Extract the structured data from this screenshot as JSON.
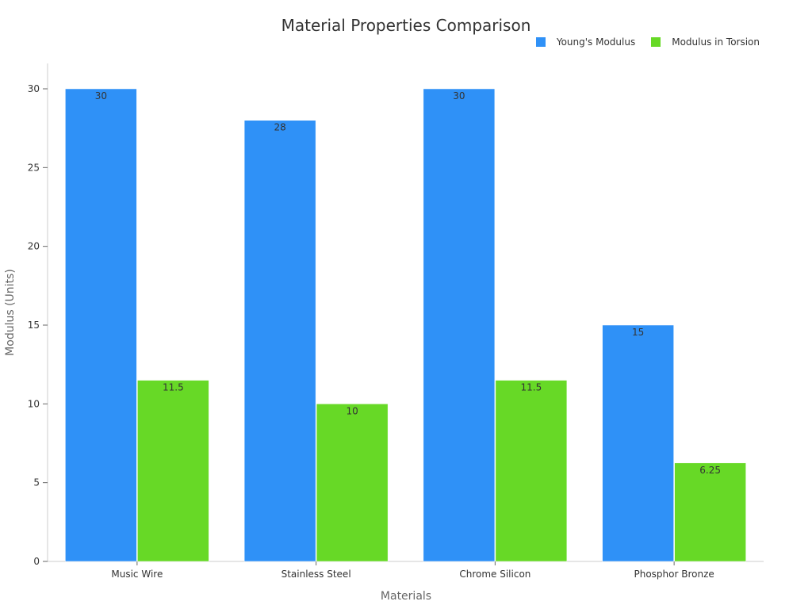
{
  "chart_data": {
    "type": "bar",
    "title": "Material Properties Comparison",
    "xlabel": "Materials",
    "ylabel": "Modulus (Units)",
    "categories": [
      "Music Wire",
      "Stainless Steel",
      "Chrome Silicon",
      "Phosphor Bronze"
    ],
    "series": [
      {
        "name": "Young's Modulus",
        "values": [
          30,
          28,
          30,
          15
        ],
        "labels": [
          "30",
          "28",
          "30",
          "15"
        ],
        "color": "#2f91f7"
      },
      {
        "name": "Modulus in Torsion",
        "values": [
          11.5,
          10,
          11.5,
          6.25
        ],
        "labels": [
          "11.5",
          "10",
          "11.5",
          "6.25"
        ],
        "color": "#67d926"
      }
    ],
    "ylim": [
      0,
      30
    ],
    "yticks": [
      0,
      5,
      10,
      15,
      20,
      25,
      30
    ],
    "legend_position": "top-right",
    "grid": false
  }
}
